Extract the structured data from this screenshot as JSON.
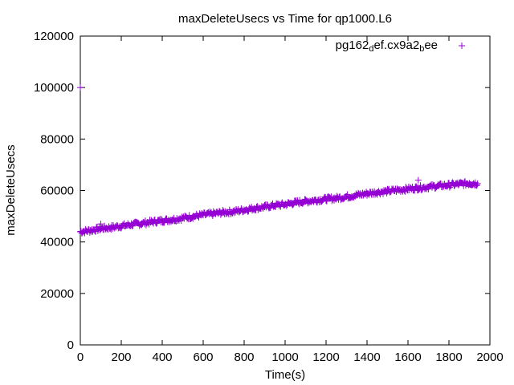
{
  "chart_data": {
    "type": "scatter",
    "title": "maxDeleteUsecs vs Time for qp1000.L6",
    "xlabel": "Time(s)",
    "ylabel": "maxDeleteUsecs",
    "xlim": [
      0,
      2000
    ],
    "ylim": [
      0,
      120000
    ],
    "x_ticks": [
      0,
      200,
      400,
      600,
      800,
      1000,
      1200,
      1400,
      1600,
      1800,
      2000
    ],
    "y_ticks": [
      0,
      20000,
      40000,
      60000,
      80000,
      100000,
      120000
    ],
    "grid": false,
    "legend_position": "top-right",
    "series": [
      {
        "name": "pg162_def.cx9a2_bee",
        "legend_parts": [
          {
            "text": "pg162",
            "sub": false
          },
          {
            "text": "d",
            "sub": true
          },
          {
            "text": "ef.cx9a2",
            "sub": false
          },
          {
            "text": "b",
            "sub": true
          },
          {
            "text": "ee",
            "sub": false
          }
        ],
        "color": "#9400d3",
        "marker": "plus",
        "x": [
          0,
          50,
          100,
          150,
          200,
          250,
          300,
          350,
          400,
          450,
          500,
          550,
          600,
          650,
          700,
          750,
          800,
          850,
          900,
          950,
          1000,
          1050,
          1100,
          1150,
          1200,
          1250,
          1300,
          1350,
          1400,
          1450,
          1500,
          1550,
          1600,
          1650,
          1700,
          1750,
          1800,
          1850,
          1900,
          1940
        ],
        "y": [
          44000,
          44500,
          45200,
          45600,
          46200,
          46800,
          47200,
          47800,
          48300,
          48700,
          49300,
          49900,
          50500,
          51000,
          51500,
          51800,
          52500,
          53100,
          53600,
          54200,
          54600,
          55300,
          55800,
          56200,
          56700,
          57000,
          57600,
          58200,
          58800,
          59300,
          59700,
          60200,
          60600,
          61000,
          61400,
          61800,
          62100,
          62500,
          62800,
          62700
        ]
      }
    ],
    "outliers": [
      {
        "x": 0,
        "y": 100000
      },
      {
        "x": 100,
        "y": 47000
      },
      {
        "x": 1650,
        "y": 64000
      }
    ]
  }
}
